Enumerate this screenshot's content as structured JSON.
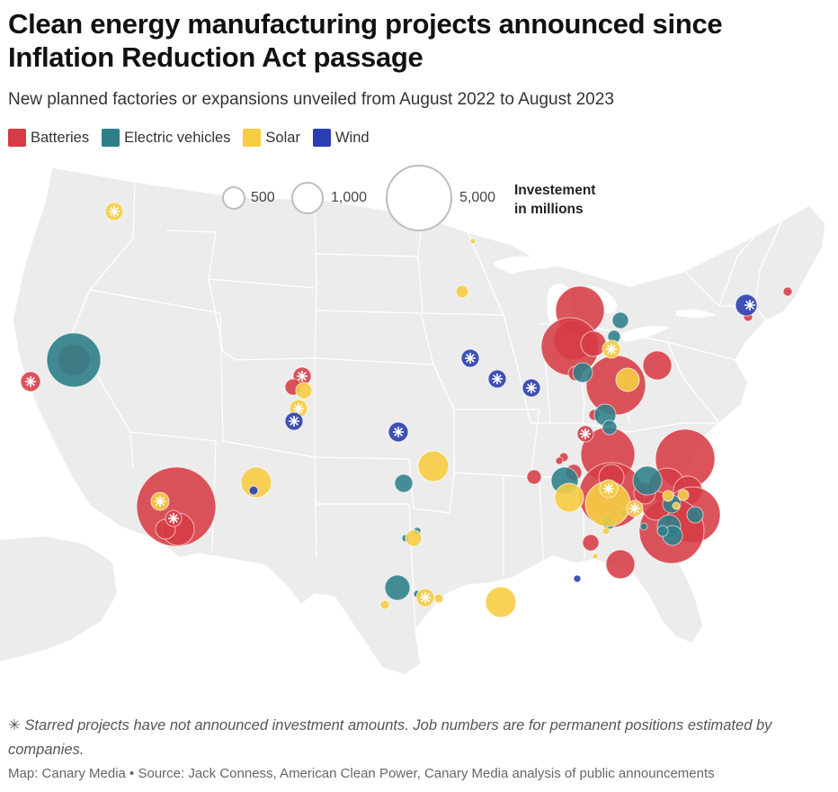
{
  "header": {
    "title": "Clean energy manufacturing projects announced since Inflation Reduction Act passage",
    "subtitle": "New planned factories or expansions unveiled from August 2022 to August 2023"
  },
  "legend": {
    "categories": [
      {
        "label": "Batteries",
        "color": "#d63c46"
      },
      {
        "label": "Electric vehicles",
        "color": "#2e7f8a"
      },
      {
        "label": "Solar",
        "color": "#f6cd45"
      },
      {
        "label": "Wind",
        "color": "#2c3fb0"
      }
    ],
    "size": {
      "title_line1": "Investement",
      "title_line2": "in millions",
      "entries": [
        {
          "label": "500",
          "value": 500
        },
        {
          "label": "1,000",
          "value": 1000
        },
        {
          "label": "5,000",
          "value": 5000
        }
      ]
    }
  },
  "footer": {
    "star_glyph": "✳",
    "note": "Starred projects have not announced investment amounts. Job numbers are for permanent positions estimated by companies.",
    "credit": "Map: Canary Media • Source: Jack Conness, American Clean Power, Canary Media analysis of public announcements"
  }
}
